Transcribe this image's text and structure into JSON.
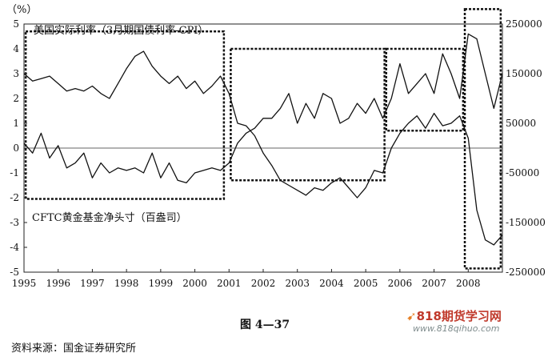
{
  "chart_data": {
    "type": "line",
    "y_unit_label": "（%）",
    "left_axis": {
      "ylim": [
        -5,
        5
      ],
      "ticks": [
        "5",
        "4",
        "3",
        "2",
        "1",
        "0",
        "-1",
        "-2",
        "-3",
        "-4",
        "-5"
      ]
    },
    "right_axis": {
      "ylim": [
        -250000,
        250000
      ],
      "ticks": [
        "250000",
        "150000",
        "50000",
        "-50000",
        "-150000",
        "-250000"
      ]
    },
    "x_ticks": [
      "1995",
      "1996",
      "1997",
      "1998",
      "1999",
      "2000",
      "2001",
      "2002",
      "2003",
      "2004",
      "2005",
      "2006",
      "2007",
      "2008"
    ],
    "grid": false,
    "series": [
      {
        "name": "美国实际利率（3月期国债利率-CPI）",
        "axis": "left",
        "x": [
          1995.0,
          1995.25,
          1995.5,
          1995.75,
          1996.0,
          1996.25,
          1996.5,
          1996.75,
          1997.0,
          1997.25,
          1997.5,
          1997.75,
          1998.0,
          1998.25,
          1998.5,
          1998.75,
          1999.0,
          1999.25,
          1999.5,
          1999.75,
          2000.0,
          2000.25,
          2000.5,
          2000.75,
          2001.0,
          2001.25,
          2001.5,
          2001.75,
          2002.0,
          2002.25,
          2002.5,
          2002.75,
          2003.0,
          2003.25,
          2003.5,
          2003.75,
          2004.0,
          2004.25,
          2004.5,
          2004.75,
          2005.0,
          2005.25,
          2005.5,
          2005.75,
          2006.0,
          2006.25,
          2006.5,
          2006.75,
          2007.0,
          2007.25,
          2007.5,
          2007.75,
          2008.0,
          2008.25,
          2008.5,
          2008.75,
          2009.0
        ],
        "y": [
          3.0,
          2.7,
          2.8,
          2.9,
          2.6,
          2.3,
          2.4,
          2.3,
          2.5,
          2.2,
          2.0,
          2.6,
          3.2,
          3.7,
          3.9,
          3.3,
          2.9,
          2.6,
          2.9,
          2.4,
          2.7,
          2.2,
          2.5,
          2.9,
          2.2,
          1.0,
          0.9,
          0.5,
          -0.2,
          -0.7,
          -1.3,
          -1.5,
          -1.7,
          -1.9,
          -1.6,
          -1.7,
          -1.4,
          -1.2,
          -1.6,
          -2.0,
          -1.6,
          -0.9,
          -1.0,
          0.0,
          0.6,
          1.0,
          1.3,
          0.8,
          1.4,
          0.9,
          1.0,
          1.3,
          0.4,
          -2.5,
          -3.7,
          -3.9,
          -3.5
        ]
      },
      {
        "name": "CFTC黄金基金净头寸（百盎司）",
        "axis": "right",
        "x": [
          1995.0,
          1995.25,
          1995.5,
          1995.75,
          1996.0,
          1996.25,
          1996.5,
          1996.75,
          1997.0,
          1997.25,
          1997.5,
          1997.75,
          1998.0,
          1998.25,
          1998.5,
          1998.75,
          1999.0,
          1999.25,
          1999.5,
          1999.75,
          2000.0,
          2000.25,
          2000.5,
          2000.75,
          2001.0,
          2001.25,
          2001.5,
          2001.75,
          2002.0,
          2002.25,
          2002.5,
          2002.75,
          2003.0,
          2003.25,
          2003.5,
          2003.75,
          2004.0,
          2004.25,
          2004.5,
          2004.75,
          2005.0,
          2005.25,
          2005.5,
          2005.75,
          2006.0,
          2006.25,
          2006.5,
          2006.75,
          2007.0,
          2007.25,
          2007.5,
          2007.75,
          2008.0,
          2008.25,
          2008.5,
          2008.75,
          2009.0
        ],
        "y": [
          10000,
          -10000,
          30000,
          -20000,
          5000,
          -40000,
          -30000,
          -10000,
          -60000,
          -30000,
          -50000,
          -40000,
          -45000,
          -40000,
          -50000,
          -10000,
          -60000,
          -30000,
          -65000,
          -70000,
          -50000,
          -45000,
          -40000,
          -45000,
          -30000,
          10000,
          30000,
          40000,
          60000,
          60000,
          80000,
          110000,
          50000,
          90000,
          60000,
          110000,
          100000,
          50000,
          60000,
          90000,
          70000,
          100000,
          60000,
          100000,
          170000,
          110000,
          130000,
          150000,
          110000,
          190000,
          150000,
          100000,
          230000,
          220000,
          150000,
          80000,
          150000
        ]
      }
    ],
    "annotations": [
      "（3月期国债利率-CPI）"
    ]
  },
  "caption": {
    "figure_label": "图 4—37",
    "source": "资料来源：国金证券研究所"
  },
  "watermark": {
    "brand": "818期货学习网",
    "url": "www.818qihuo.com"
  }
}
